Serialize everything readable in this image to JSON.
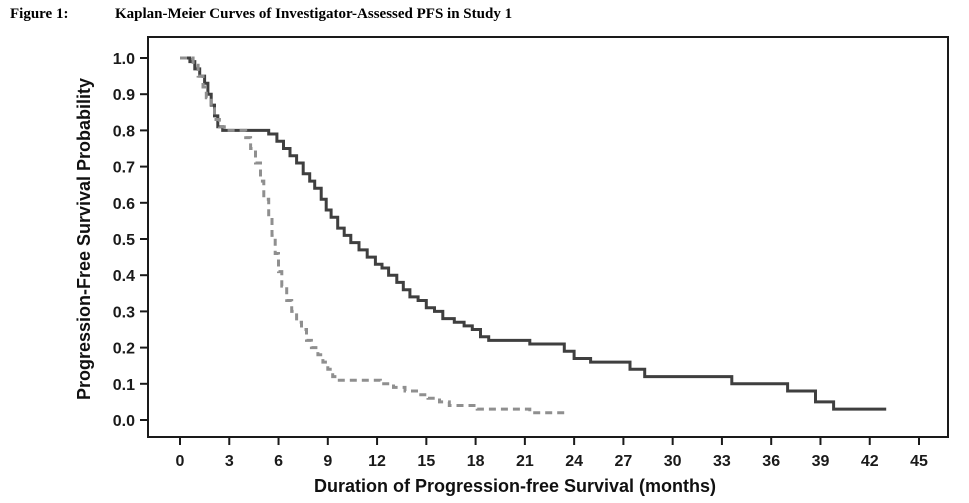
{
  "caption": {
    "label": "Figure 1:",
    "title": "Kaplan-Meier Curves of Investigator-Assessed PFS in Study 1"
  },
  "chart_data": {
    "type": "line",
    "subtype": "kaplan-meier-step",
    "title": "Kaplan-Meier Curves of Investigator-Assessed PFS in Study 1",
    "xlabel": "Duration of Progression-free Survival (months)",
    "ylabel": "Progression-Free Survival Probability",
    "xlim": [
      0,
      45
    ],
    "ylim": [
      0.0,
      1.0
    ],
    "x_ticks": [
      0,
      3,
      6,
      9,
      12,
      15,
      18,
      21,
      24,
      27,
      30,
      33,
      36,
      39,
      42,
      45
    ],
    "y_ticks": [
      0.0,
      0.1,
      0.2,
      0.3,
      0.4,
      0.5,
      0.6,
      0.7,
      0.8,
      0.9,
      1.0
    ],
    "grid": false,
    "legend_position": "none",
    "colors": {
      "solid_arm": "#3f3f3f",
      "dashed_arm": "#8f8f8f",
      "axis": "#1a1a1a"
    },
    "series": [
      {
        "name": "solid-arm",
        "style": "solid",
        "color": "#3f3f3f",
        "points": [
          [
            0,
            1.0
          ],
          [
            0.6,
            0.99
          ],
          [
            0.9,
            0.97
          ],
          [
            1.2,
            0.95
          ],
          [
            1.5,
            0.93
          ],
          [
            1.7,
            0.9
          ],
          [
            1.9,
            0.87
          ],
          [
            2.1,
            0.84
          ],
          [
            2.3,
            0.81
          ],
          [
            2.6,
            0.8
          ],
          [
            4.9,
            0.8
          ],
          [
            5.4,
            0.79
          ],
          [
            5.9,
            0.77
          ],
          [
            6.3,
            0.75
          ],
          [
            6.7,
            0.73
          ],
          [
            7.1,
            0.71
          ],
          [
            7.5,
            0.68
          ],
          [
            7.9,
            0.66
          ],
          [
            8.2,
            0.64
          ],
          [
            8.6,
            0.61
          ],
          [
            8.9,
            0.58
          ],
          [
            9.2,
            0.56
          ],
          [
            9.6,
            0.53
          ],
          [
            10.0,
            0.51
          ],
          [
            10.4,
            0.49
          ],
          [
            10.9,
            0.47
          ],
          [
            11.4,
            0.45
          ],
          [
            11.9,
            0.43
          ],
          [
            12.3,
            0.42
          ],
          [
            12.7,
            0.4
          ],
          [
            13.2,
            0.38
          ],
          [
            13.6,
            0.36
          ],
          [
            14.0,
            0.34
          ],
          [
            14.5,
            0.33
          ],
          [
            15.0,
            0.31
          ],
          [
            15.5,
            0.3
          ],
          [
            16.0,
            0.28
          ],
          [
            16.7,
            0.27
          ],
          [
            17.3,
            0.26
          ],
          [
            17.8,
            0.25
          ],
          [
            18.3,
            0.23
          ],
          [
            18.8,
            0.22
          ],
          [
            21.3,
            0.21
          ],
          [
            23.4,
            0.19
          ],
          [
            24.0,
            0.17
          ],
          [
            25.0,
            0.16
          ],
          [
            27.4,
            0.14
          ],
          [
            28.3,
            0.12
          ],
          [
            33.6,
            0.1
          ],
          [
            37.0,
            0.08
          ],
          [
            38.7,
            0.05
          ],
          [
            39.8,
            0.03
          ],
          [
            43.0,
            0.03
          ]
        ]
      },
      {
        "name": "dashed-arm",
        "style": "dashed",
        "color": "#8f8f8f",
        "points": [
          [
            0,
            1.0
          ],
          [
            0.8,
            0.98
          ],
          [
            1.1,
            0.95
          ],
          [
            1.4,
            0.92
          ],
          [
            1.6,
            0.89
          ],
          [
            1.9,
            0.86
          ],
          [
            2.1,
            0.83
          ],
          [
            2.4,
            0.81
          ],
          [
            2.7,
            0.8
          ],
          [
            3.6,
            0.8
          ],
          [
            4.0,
            0.78
          ],
          [
            4.3,
            0.75
          ],
          [
            4.6,
            0.71
          ],
          [
            4.9,
            0.66
          ],
          [
            5.1,
            0.61
          ],
          [
            5.4,
            0.56
          ],
          [
            5.6,
            0.51
          ],
          [
            5.8,
            0.46
          ],
          [
            6.0,
            0.41
          ],
          [
            6.2,
            0.37
          ],
          [
            6.5,
            0.33
          ],
          [
            6.8,
            0.3
          ],
          [
            7.1,
            0.27
          ],
          [
            7.4,
            0.25
          ],
          [
            7.7,
            0.22
          ],
          [
            8.0,
            0.2
          ],
          [
            8.4,
            0.18
          ],
          [
            8.7,
            0.16
          ],
          [
            9.0,
            0.14
          ],
          [
            9.3,
            0.12
          ],
          [
            9.6,
            0.11
          ],
          [
            12.2,
            0.1
          ],
          [
            13.0,
            0.09
          ],
          [
            13.7,
            0.08
          ],
          [
            14.4,
            0.07
          ],
          [
            15.1,
            0.06
          ],
          [
            15.8,
            0.05
          ],
          [
            16.4,
            0.04
          ],
          [
            18.1,
            0.03
          ],
          [
            21.3,
            0.02
          ],
          [
            23.5,
            0.02
          ]
        ]
      }
    ]
  }
}
